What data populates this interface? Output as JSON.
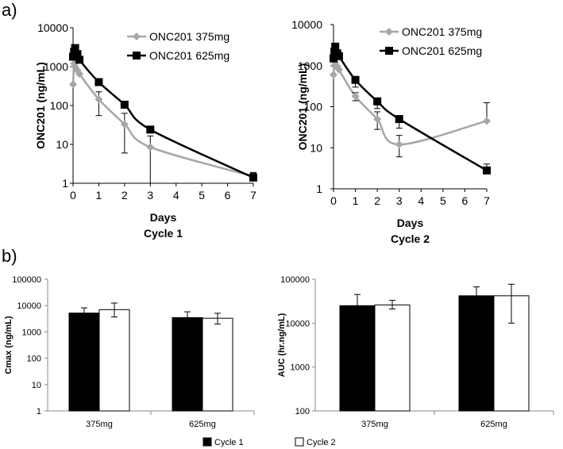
{
  "panel_labels": {
    "a": "a)",
    "b": "b)"
  },
  "legend_bar": {
    "cycle1": "Cycle 1",
    "cycle2": "Cycle 2"
  },
  "colors": {
    "grey": "#a6a6a6",
    "black": "#000000",
    "white": "#ffffff"
  },
  "chart_data": [
    {
      "type": "line",
      "id": "a-cycle1",
      "title": "",
      "xlabel": "Days",
      "xlabel2": "Cycle 1",
      "ylabel": "ONC201 (ng/mL)",
      "yscale": "log",
      "ylim": [
        1,
        10000
      ],
      "xlim": [
        0,
        7
      ],
      "xticks": [
        0,
        1,
        2,
        3,
        4,
        5,
        6,
        7
      ],
      "yticks": [
        1,
        10,
        100,
        1000,
        10000
      ],
      "legend_position": "top-right",
      "series": [
        {
          "name": "ONC201 375mg",
          "color": "#a6a6a6",
          "marker": "diamond",
          "x": [
            0,
            0.04,
            0.08,
            0.17,
            0.25,
            1,
            2,
            3,
            7
          ],
          "y": [
            350,
            1200,
            1000,
            800,
            650,
            145,
            33,
            8.5,
            1.5
          ],
          "err_up": [
            0,
            0,
            0,
            0,
            0,
            80,
            30,
            8,
            0.3
          ],
          "err_down": [
            0,
            0,
            0,
            0,
            0,
            90,
            27,
            7.5,
            0
          ]
        },
        {
          "name": "ONC201 625mg",
          "color": "#000000",
          "marker": "square",
          "x": [
            0,
            0.04,
            0.08,
            0.17,
            0.25,
            1,
            2,
            3,
            7
          ],
          "y": [
            1800,
            2400,
            3000,
            2100,
            1500,
            400,
            105,
            24,
            1.4
          ],
          "err_up": [
            0,
            0,
            0,
            0,
            0,
            0,
            0,
            0,
            0.5
          ],
          "err_down": [
            0,
            0,
            0,
            0,
            0,
            0,
            0,
            0,
            0.2
          ]
        }
      ]
    },
    {
      "type": "line",
      "id": "a-cycle2",
      "title": "",
      "xlabel": "Days",
      "xlabel2": "Cycle 2",
      "ylabel": "ONC201 (ng/mL)",
      "yscale": "log",
      "ylim": [
        1,
        10000
      ],
      "xlim": [
        0,
        7
      ],
      "xticks": [
        0,
        1,
        2,
        3,
        4,
        5,
        6,
        7
      ],
      "yticks": [
        1,
        10,
        100,
        1000,
        10000
      ],
      "legend_position": "top-right",
      "series": [
        {
          "name": "ONC201 375mg",
          "color": "#a6a6a6",
          "marker": "diamond",
          "x": [
            0,
            0.04,
            0.08,
            0.17,
            0.25,
            1,
            2,
            3,
            7
          ],
          "y": [
            600,
            1000,
            1200,
            950,
            800,
            180,
            50,
            12,
            45
          ],
          "err_up": [
            0,
            0,
            0,
            0,
            0,
            40,
            25,
            8,
            80
          ],
          "err_down": [
            0,
            0,
            0,
            0,
            0,
            40,
            22,
            6,
            0
          ]
        },
        {
          "name": "ONC201 625mg",
          "color": "#000000",
          "marker": "square",
          "x": [
            0,
            0.04,
            0.08,
            0.17,
            0.25,
            1,
            2,
            3,
            7
          ],
          "y": [
            1500,
            2200,
            2900,
            2000,
            1700,
            450,
            135,
            50,
            2.8
          ],
          "err_up": [
            0,
            0,
            0,
            0,
            0,
            0,
            0,
            0,
            1.2
          ],
          "err_down": [
            0,
            0,
            0,
            0,
            0,
            150,
            45,
            20,
            0
          ]
        }
      ]
    },
    {
      "type": "bar",
      "id": "b-cmax",
      "title": "",
      "xlabel": "",
      "ylabel": "Cmax (ng/mL)",
      "yscale": "log",
      "ylim": [
        1,
        100000
      ],
      "yticks": [
        1,
        10,
        100,
        1000,
        10000,
        100000
      ],
      "categories": [
        "375mg",
        "625mg"
      ],
      "legend_position": "bottom",
      "series": [
        {
          "name": "Cycle 1",
          "color": "#000000",
          "values": [
            5200,
            3500
          ],
          "err_up": [
            3000,
            2300
          ]
        },
        {
          "name": "Cycle 2",
          "color": "#ffffff",
          "values": [
            7000,
            3300
          ],
          "err_up": [
            5500,
            1800
          ],
          "err_down": [
            3300,
            1300
          ]
        }
      ]
    },
    {
      "type": "bar",
      "id": "b-auc",
      "title": "",
      "xlabel": "",
      "ylabel": "AUC (hr.ng/mL)",
      "yscale": "log",
      "ylim": [
        100,
        100000
      ],
      "yticks": [
        100,
        1000,
        10000,
        100000
      ],
      "categories": [
        "375mg",
        "625mg"
      ],
      "legend_position": "bottom",
      "series": [
        {
          "name": "Cycle 1",
          "color": "#000000",
          "values": [
            25000,
            42000
          ],
          "err_up": [
            20000,
            25000
          ]
        },
        {
          "name": "Cycle 2",
          "color": "#ffffff",
          "values": [
            26000,
            42000
          ],
          "err_up": [
            7000,
            35000
          ],
          "err_down": [
            5000,
            32000
          ]
        }
      ]
    }
  ]
}
